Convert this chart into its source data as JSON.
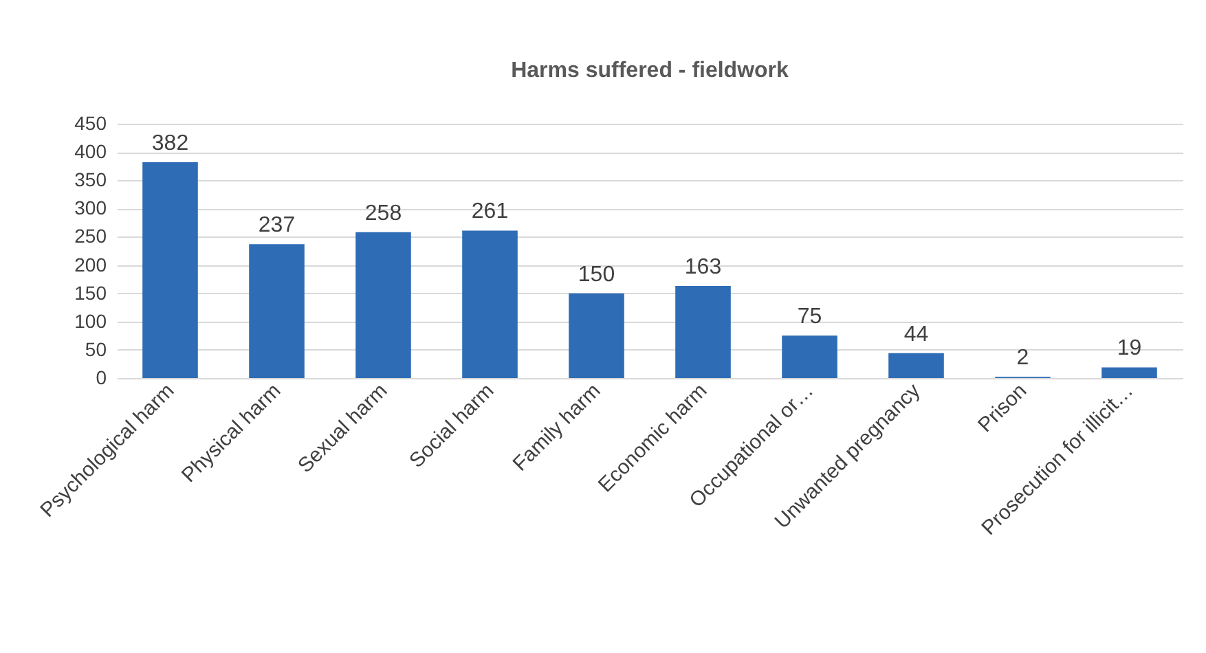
{
  "chart_data": {
    "type": "bar",
    "title": "Harms suffered - fieldwork",
    "categories": [
      "Psychological harm",
      "Physical harm",
      "Sexual harm",
      "Social harm",
      "Family harm",
      "Economic harm",
      "Occupational or…",
      "Unwanted pregnancy",
      "Prison",
      "Prosecution for illicit…"
    ],
    "values": [
      382,
      237,
      258,
      261,
      150,
      163,
      75,
      44,
      2,
      19
    ],
    "color": "#2e6db5",
    "ylim": [
      0,
      450
    ],
    "yticks": [
      0,
      50,
      100,
      150,
      200,
      250,
      300,
      350,
      400,
      450
    ],
    "grid": "y",
    "data_labels": true
  }
}
